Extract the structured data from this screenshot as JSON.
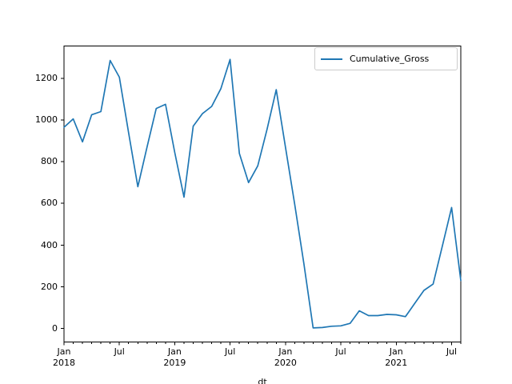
{
  "chart_data": {
    "type": "line",
    "title": "",
    "xlabel": "dt",
    "ylabel": "",
    "grid": false,
    "axis_color": "#000000",
    "legend": {
      "entries": [
        "Cumulative_Gross"
      ],
      "position": "upper right",
      "border_color": "#cccccc"
    },
    "x": [
      "2018-01",
      "2018-02",
      "2018-03",
      "2018-04",
      "2018-05",
      "2018-06",
      "2018-07",
      "2018-08",
      "2018-09",
      "2018-10",
      "2018-11",
      "2018-12",
      "2019-01",
      "2019-02",
      "2019-03",
      "2019-04",
      "2019-05",
      "2019-06",
      "2019-07",
      "2019-08",
      "2019-09",
      "2019-10",
      "2019-11",
      "2019-12",
      "2020-01",
      "2020-02",
      "2020-03",
      "2020-04",
      "2020-05",
      "2020-06",
      "2020-07",
      "2020-08",
      "2020-09",
      "2020-10",
      "2020-11",
      "2020-12",
      "2021-01",
      "2021-02",
      "2021-03",
      "2021-04",
      "2021-05",
      "2021-06",
      "2021-07",
      "2021-08"
    ],
    "series": [
      {
        "name": "Cumulative_Gross",
        "color": "#1f77b4",
        "values": [
          965,
          1005,
          895,
          1025,
          1040,
          1285,
          1205,
          940,
          680,
          870,
          1055,
          1075,
          845,
          630,
          970,
          1030,
          1065,
          1150,
          1290,
          840,
          700,
          780,
          955,
          1145,
          870,
          595,
          310,
          3,
          5,
          11,
          13,
          25,
          85,
          62,
          62,
          68,
          66,
          57,
          120,
          183,
          213,
          395,
          580,
          230
        ]
      }
    ],
    "ylim": [
      -64.5,
      1354.5
    ],
    "yticks": [
      0,
      200,
      400,
      600,
      800,
      1000,
      1200
    ],
    "ytick_labels": [
      "0",
      "200",
      "400",
      "600",
      "800",
      "1000",
      "1200"
    ],
    "xticks_major": [
      {
        "month_index": 0,
        "line1": "Jan",
        "line2": "2018"
      },
      {
        "month_index": 6,
        "line1": "Jul"
      },
      {
        "month_index": 12,
        "line1": "Jan",
        "line2": "2019"
      },
      {
        "month_index": 18,
        "line1": "Jul"
      },
      {
        "month_index": 24,
        "line1": "Jan",
        "line2": "2020"
      },
      {
        "month_index": 30,
        "line1": "Jul"
      },
      {
        "month_index": 36,
        "line1": "Jan",
        "line2": "2021"
      },
      {
        "month_index": 42,
        "line1": "Jul"
      }
    ]
  }
}
